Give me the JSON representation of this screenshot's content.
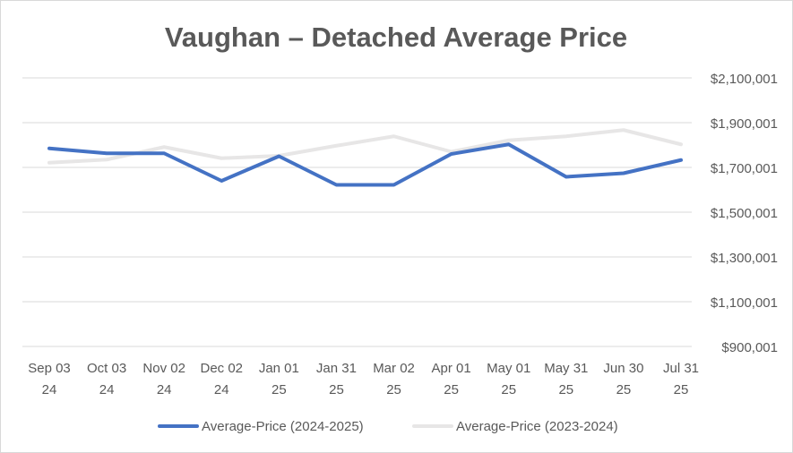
{
  "chart_data": {
    "type": "line",
    "title": "Vaughan – Detached Average Price",
    "xlabel": "",
    "ylabel": "",
    "categories": [
      [
        "Sep 03",
        "24"
      ],
      [
        "Oct 03",
        "24"
      ],
      [
        "Nov 02",
        "24"
      ],
      [
        "Dec 02",
        "24"
      ],
      [
        "Jan 01",
        "25"
      ],
      [
        "Jan 31",
        "25"
      ],
      [
        "Mar 02",
        "25"
      ],
      [
        "Apr 01",
        "25"
      ],
      [
        "May 01",
        "25"
      ],
      [
        "May 31",
        "25"
      ],
      [
        "Jun 30",
        "25"
      ],
      [
        "Jul 31",
        "25"
      ]
    ],
    "ylim": [
      900001,
      2100001
    ],
    "yticks": [
      "$900,001",
      "$1,100,001",
      "$1,300,001",
      "$1,500,001",
      "$1,700,001",
      "$1,900,001",
      "$2,100,001"
    ],
    "grid": true,
    "legend_position": "bottom",
    "series": [
      {
        "name": "Average-Price (2024-2025)",
        "color": "#4472C4",
        "values": [
          1785000,
          1763000,
          1763000,
          1640000,
          1750000,
          1622000,
          1622000,
          1760000,
          1803000,
          1658000,
          1674000,
          1733000
        ]
      },
      {
        "name": "Average-Price (2023-2024)",
        "color": "#E7E6E6",
        "values": [
          1721000,
          1735000,
          1791000,
          1741000,
          1752000,
          1797000,
          1839000,
          1770000,
          1821000,
          1839000,
          1867000,
          1803000
        ]
      }
    ]
  }
}
